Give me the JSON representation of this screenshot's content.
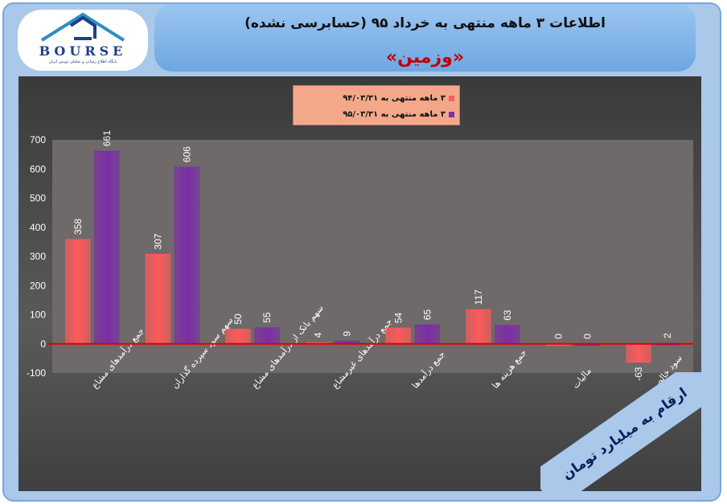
{
  "header": {
    "title": "اطلاعات ۳ ماهه منتهی به خرداد ۹۵ (حسابرسی نشده)",
    "subtitle": "«وزمین»"
  },
  "logo": {
    "word": "BOURSE",
    "tagline": "پایگاه اطلاع رسانی و تحلیلی بورس ایران"
  },
  "unit_note": "ارقام به میلیارد تومان",
  "colors": {
    "series1": "#ff5a5a",
    "series2": "#7b2ea8",
    "zero_line": "#e00000",
    "plot_bg": "#6e6a6a"
  },
  "chart_data": {
    "type": "bar",
    "categories": [
      "جمع درآمدهای مشاع",
      "سهم سود سپرده گذاران",
      "سهم بانک از درآمدهای مشاع",
      "جمع درآمدهای غیرمشاع",
      "جمع درآمدها",
      "جمع هزینه ها",
      "مالیات",
      "سود خالص"
    ],
    "series": [
      {
        "name": "۳ ماهه منتهی به ۹۴/۰۳/۳۱",
        "values": [
          358,
          307,
          50,
          4,
          54,
          117,
          0,
          -63
        ]
      },
      {
        "name": "۳ ماهه منتهی به ۹۵/۰۳/۳۱",
        "values": [
          661,
          606,
          55,
          9,
          65,
          63,
          0,
          2
        ]
      }
    ],
    "ylim": [
      -100,
      700
    ],
    "yticks": [
      -100,
      0,
      100,
      200,
      300,
      400,
      500,
      600,
      700
    ],
    "grid": false,
    "legend": "top-center"
  }
}
